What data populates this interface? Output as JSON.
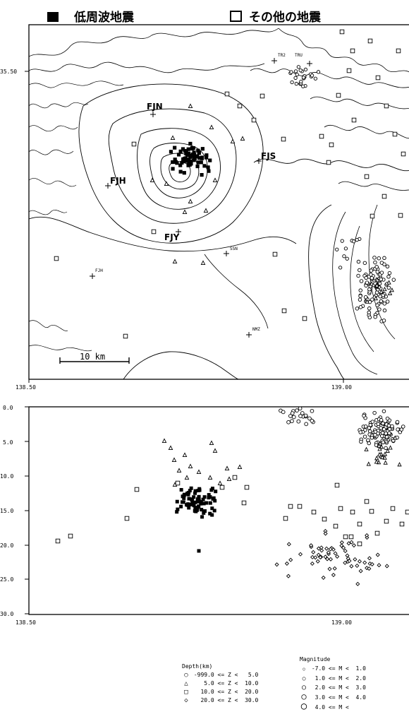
{
  "legend_top": {
    "low_freq": "低周波地震",
    "other": "その他の地震"
  },
  "map": {
    "lat_label": "35.50",
    "lon_ticks": [
      "138.50",
      "139.00"
    ],
    "scale_bar": "10 km",
    "stations": [
      {
        "label": "FJN"
      },
      {
        "label": "FJS"
      },
      {
        "label": "FJH"
      },
      {
        "label": "FJY"
      },
      {
        "label": "FJH"
      },
      {
        "label": "SSN"
      },
      {
        "label": "NMZ"
      },
      {
        "label": "TR2"
      },
      {
        "label": "TRU"
      }
    ]
  },
  "section": {
    "depth_ticks": [
      "0.0",
      "5.0",
      "10.0",
      "15.0",
      "20.0",
      "25.0",
      "30.0"
    ],
    "lon_ticks": [
      "138.50",
      "139.00"
    ]
  },
  "legend_depth": {
    "title": "Depth(km)",
    "rows": [
      {
        "symbol": "○",
        "text": "-999.0 <= Z <   5.0"
      },
      {
        "symbol": "△",
        "text": "   5.0 <= Z <  10.0"
      },
      {
        "symbol": "□",
        "text": "  10.0 <= Z <  20.0"
      },
      {
        "symbol": "◇",
        "text": "  20.0 <= Z <  30.0"
      }
    ]
  },
  "legend_mag": {
    "title": "Magnitude",
    "rows": [
      {
        "text": "-7.0 <= M <  1.0"
      },
      {
        "text": " 1.0 <= M <  2.0"
      },
      {
        "text": " 2.0 <= M <  3.0"
      },
      {
        "text": " 3.0 <= M <  4.0"
      },
      {
        "text": " 4.0 <= M <"
      }
    ]
  }
}
